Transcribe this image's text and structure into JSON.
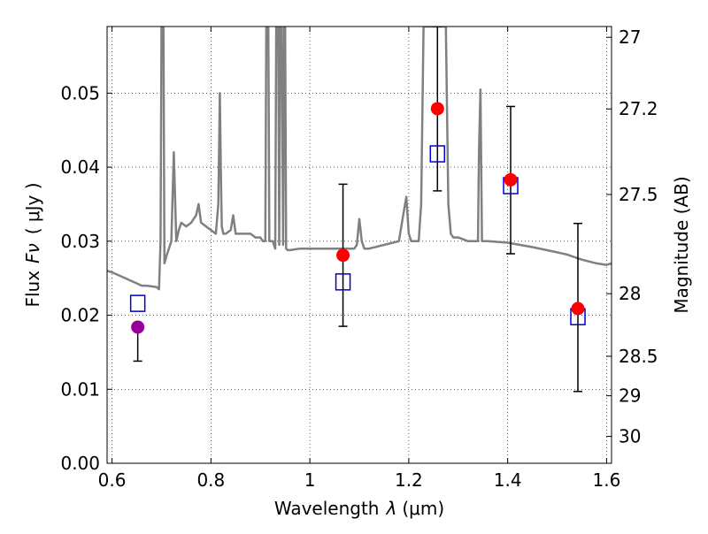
{
  "chart_data": {
    "type": "scatter",
    "xlabel": "Wavelength",
    "xlabel_symbol": "λ",
    "xlabel_unit": "(μm)",
    "ylabel": "Flux",
    "ylabel_symbol": "Fν",
    "ylabel_unit": "( μJy )",
    "y2label": "Magnitude (AB)",
    "xlim": [
      0.59,
      1.61
    ],
    "ylim": [
      0.0,
      0.059
    ],
    "grid": true,
    "grid_style": "dotted",
    "x_ticks": [
      {
        "value": 0.6,
        "label": "0.6"
      },
      {
        "value": 0.8,
        "label": "0.8"
      },
      {
        "value": 1.0,
        "label": "1"
      },
      {
        "value": 1.2,
        "label": "1.2"
      },
      {
        "value": 1.4,
        "label": "1.4"
      },
      {
        "value": 1.6,
        "label": "1.6"
      }
    ],
    "y_ticks": [
      {
        "value": 0.0,
        "label": "0.00"
      },
      {
        "value": 0.01,
        "label": "0.01"
      },
      {
        "value": 0.02,
        "label": "0.02"
      },
      {
        "value": 0.03,
        "label": "0.03"
      },
      {
        "value": 0.04,
        "label": "0.04"
      },
      {
        "value": 0.05,
        "label": "0.05"
      }
    ],
    "y2_ticks": [
      {
        "value": 27.0,
        "label": "27"
      },
      {
        "value": 27.2,
        "label": "27.2"
      },
      {
        "value": 27.5,
        "label": "27.5"
      },
      {
        "value": 28.0,
        "label": "28"
      },
      {
        "value": 28.5,
        "label": "28.5"
      },
      {
        "value": 29.0,
        "label": "29"
      },
      {
        "value": 30.0,
        "label": "30"
      }
    ],
    "series": [
      {
        "kind": "line",
        "color": "#808080",
        "x": [
          0.59,
          0.6,
          0.62,
          0.64,
          0.65,
          0.66,
          0.67,
          0.68,
          0.69,
          0.695,
          0.698,
          0.7,
          0.702,
          0.704,
          0.706,
          0.71,
          0.72,
          0.725,
          0.73,
          0.735,
          0.74,
          0.75,
          0.76,
          0.765,
          0.77,
          0.775,
          0.78,
          0.79,
          0.8,
          0.81,
          0.815,
          0.818,
          0.82,
          0.822,
          0.825,
          0.83,
          0.84,
          0.845,
          0.85,
          0.86,
          0.87,
          0.88,
          0.89,
          0.9,
          0.905,
          0.91,
          0.912,
          0.914,
          0.916,
          0.918,
          0.92,
          0.925,
          0.93,
          0.932,
          0.934,
          0.936,
          0.938,
          0.94,
          0.943,
          0.946,
          0.948,
          0.95,
          0.952,
          0.955,
          0.96,
          0.98,
          1.0,
          1.02,
          1.05,
          1.08,
          1.09,
          1.095,
          1.1,
          1.105,
          1.11,
          1.12,
          1.15,
          1.18,
          1.19,
          1.195,
          1.2,
          1.205,
          1.21,
          1.22,
          1.225,
          1.23,
          1.235,
          1.24,
          1.25,
          1.26,
          1.27,
          1.275,
          1.28,
          1.285,
          1.29,
          1.3,
          1.32,
          1.34,
          1.342,
          1.345,
          1.348,
          1.35,
          1.36,
          1.4,
          1.45,
          1.5,
          1.52,
          1.55,
          1.58,
          1.6,
          1.61
        ],
        "y": [
          0.026,
          0.0258,
          0.0252,
          0.0246,
          0.0243,
          0.024,
          0.024,
          0.0239,
          0.0238,
          0.0235,
          0.03,
          0.059,
          0.059,
          0.059,
          0.027,
          0.028,
          0.03,
          0.042,
          0.03,
          0.0315,
          0.0325,
          0.032,
          0.0325,
          0.033,
          0.0335,
          0.035,
          0.0325,
          0.032,
          0.0315,
          0.031,
          0.035,
          0.05,
          0.04,
          0.032,
          0.031,
          0.031,
          0.0315,
          0.0335,
          0.031,
          0.031,
          0.031,
          0.031,
          0.0305,
          0.0305,
          0.03,
          0.03,
          0.059,
          0.059,
          0.059,
          0.03,
          0.03,
          0.03,
          0.029,
          0.059,
          0.059,
          0.059,
          0.0295,
          0.059,
          0.059,
          0.0295,
          0.059,
          0.059,
          0.029,
          0.0288,
          0.0288,
          0.029,
          0.029,
          0.029,
          0.029,
          0.029,
          0.029,
          0.0295,
          0.033,
          0.03,
          0.029,
          0.029,
          0.0295,
          0.03,
          0.034,
          0.036,
          0.031,
          0.03,
          0.03,
          0.03,
          0.035,
          0.059,
          0.059,
          0.059,
          0.059,
          0.059,
          0.059,
          0.059,
          0.035,
          0.031,
          0.0305,
          0.0305,
          0.03,
          0.03,
          0.042,
          0.0505,
          0.03,
          0.03,
          0.03,
          0.0298,
          0.0292,
          0.0285,
          0.0282,
          0.0275,
          0.027,
          0.0268,
          0.027
        ]
      },
      {
        "kind": "points",
        "marker": "circle",
        "x": [
          0.652,
          1.067,
          1.258,
          1.406,
          1.542
        ],
        "y": [
          0.0184,
          0.0281,
          0.0479,
          0.0383,
          0.0209
        ],
        "colors": [
          "#990099",
          "#ff0000",
          "#ff0000",
          "#ff0000",
          "#ff0000"
        ],
        "yerr_low": [
          0.0138,
          0.0185,
          0.0368,
          0.0283,
          0.0097
        ],
        "yerr_high": [
          null,
          0.0377,
          0.059,
          0.0482,
          0.0324
        ]
      },
      {
        "kind": "points",
        "marker": "square",
        "color": "#0000cc",
        "x": [
          0.652,
          1.067,
          1.258,
          1.406,
          1.542
        ],
        "y": [
          0.0216,
          0.0245,
          0.0418,
          0.0375,
          0.0198
        ]
      }
    ]
  }
}
